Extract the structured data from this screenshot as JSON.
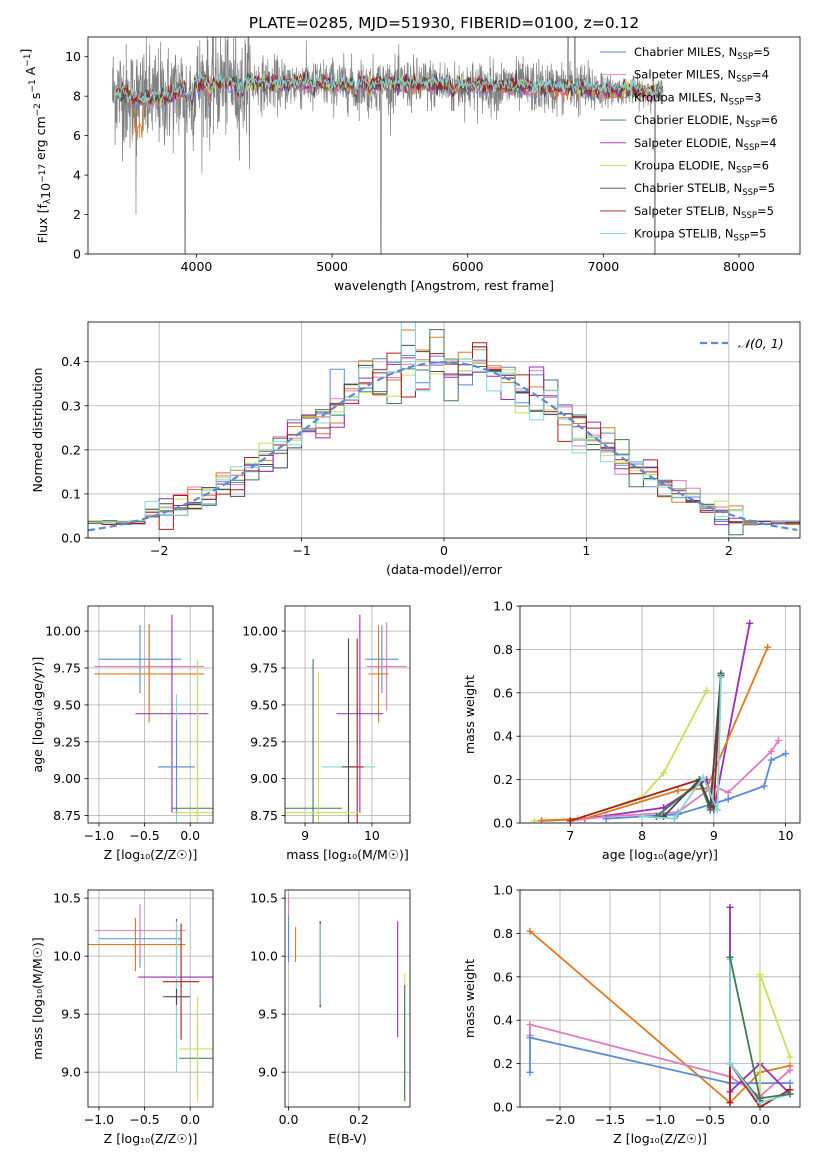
{
  "figure": {
    "title": "PLATE=0285, MJD=51930, FIBERID=0100, z=0.12"
  },
  "colors": {
    "chabrier_miles": "#5b8bd8",
    "salpeter_miles": "#e07bbd",
    "kroupa_miles": "#e07a1e",
    "chabrier_elodie": "#3e7a50",
    "salpeter_elodie": "#9b2bb8",
    "kroupa_elodie": "#c8e05a",
    "chabrier_stelib": "#4a4a4a",
    "salpeter_stelib": "#b01c1c",
    "kroupa_stelib": "#7fd8d8",
    "data": "#808080",
    "normal": "#5b8bd8",
    "grid": "#b0b0b0"
  },
  "legend1": [
    {
      "key": "chabrier_miles",
      "base": "Chabrier MILES, N",
      "sub": "SSP",
      "tail": "=5"
    },
    {
      "key": "salpeter_miles",
      "base": "Salpeter MILES, N",
      "sub": "SSP",
      "tail": "=4"
    },
    {
      "key": "kroupa_miles",
      "base": "Kroupa MILES, N",
      "sub": "SSP",
      "tail": "=3"
    },
    {
      "key": "chabrier_elodie",
      "base": "Chabrier ELODIE, N",
      "sub": "SSP",
      "tail": "=6"
    },
    {
      "key": "salpeter_elodie",
      "base": "Salpeter ELODIE, N",
      "sub": "SSP",
      "tail": "=4"
    },
    {
      "key": "kroupa_elodie",
      "base": "Kroupa ELODIE, N",
      "sub": "SSP",
      "tail": "=6"
    },
    {
      "key": "chabrier_stelib",
      "base": "Chabrier STELIB, N",
      "sub": "SSP",
      "tail": "=5"
    },
    {
      "key": "salpeter_stelib",
      "base": "Salpeter STELIB, N",
      "sub": "SSP",
      "tail": "=5"
    },
    {
      "key": "kroupa_stelib",
      "base": "Kroupa STELIB, N",
      "sub": "SSP",
      "tail": "=5"
    }
  ],
  "chart_data": [
    {
      "id": "spectrum",
      "type": "line",
      "title": "PLATE=0285, MJD=51930, FIBERID=0100, z=0.12",
      "xlabel": "wavelength [Angstrom, rest frame]",
      "ylabel_parts": {
        "a": "Flux [f",
        "b": "λ",
        "c": "10",
        "d": "−17",
        "e": " erg cm",
        "f": "−2",
        "g": " s",
        "h": "−1",
        "i": " A",
        "j": "−1",
        "k": "]"
      },
      "xlim": [
        3200,
        8450
      ],
      "ylim": [
        0,
        11
      ],
      "xticks": [
        4000,
        5000,
        6000,
        7000,
        8000
      ],
      "yticks": [
        0,
        2,
        4,
        6,
        8,
        10
      ],
      "continuum_x": [
        3400,
        3600,
        3800,
        4000,
        4200,
        4400,
        4600,
        4800,
        5000,
        5200,
        5400,
        5600,
        5800,
        6000,
        6200,
        6400,
        6600,
        6800,
        7000,
        7200,
        7400
      ],
      "continuum_y": [
        8.2,
        7.8,
        8.0,
        8.6,
        8.7,
        8.7,
        8.6,
        8.7,
        8.6,
        8.6,
        8.6,
        8.6,
        8.6,
        8.5,
        8.5,
        8.5,
        8.4,
        8.4,
        8.3,
        8.3,
        8.2
      ],
      "data_range": [
        3380,
        7440
      ]
    },
    {
      "id": "residuals",
      "type": "histogram",
      "xlabel": "(data-model)/error",
      "ylabel": "Normed distribution",
      "xlim": [
        -2.5,
        2.5
      ],
      "ylim": [
        0,
        0.49
      ],
      "xticks": [
        -2,
        -1,
        0,
        1,
        2
      ],
      "yticks": [
        0,
        0.1,
        0.2,
        0.3,
        0.4
      ],
      "legend": "𝒩(0, 1)",
      "bin_width": 0.1
    },
    {
      "id": "age_vs_Z",
      "type": "errorbar",
      "xlabel": "Z [log₁₀(Z/Z☉)]",
      "ylabel": "age  [log₁₀(age/yr)]",
      "xlim": [
        -1.12,
        0.25
      ],
      "ylim": [
        8.7,
        10.17
      ],
      "xticks": [
        -1.0,
        -0.5,
        0.0
      ],
      "yticks": [
        8.75,
        9.0,
        9.25,
        9.5,
        9.75,
        10.0
      ],
      "points": [
        {
          "key": "chabrier_miles",
          "x": -0.55,
          "xerr": 0.45,
          "y": 9.81,
          "yerr": 0.23
        },
        {
          "key": "salpeter_miles",
          "x": -0.45,
          "xerr": 0.6,
          "y": 9.76,
          "yerr": 0.29
        },
        {
          "key": "kroupa_miles",
          "x": -0.45,
          "xerr": 0.6,
          "y": 9.71,
          "yerr": 0.33
        },
        {
          "key": "salpeter_elodie",
          "x": -0.2,
          "xerr": 0.4,
          "y": 9.44,
          "yerr": 0.67
        },
        {
          "key": "kroupa_stelib",
          "x": -0.15,
          "xerr": 0.2,
          "y": 9.08,
          "yerr": 0.49
        },
        {
          "key": "chabrier_miles",
          "x": -0.15,
          "xerr": 0.2,
          "y": 9.08,
          "yerr": 0.32
        },
        {
          "key": "chabrier_elodie",
          "x": 0.08,
          "xerr": 0.28,
          "y": 8.8,
          "yerr": 1.0
        },
        {
          "key": "kroupa_elodie",
          "x": 0.08,
          "xerr": 0.28,
          "y": 8.77,
          "yerr": 1.04
        }
      ]
    },
    {
      "id": "age_vs_mass",
      "type": "errorbar",
      "xlabel": "mass [log₁₀(M/M☉)]",
      "ylabel": "",
      "xlim": [
        8.7,
        10.57
      ],
      "ylim": [
        8.7,
        10.17
      ],
      "xticks": [
        9,
        10
      ],
      "yticks": [
        8.75,
        9.0,
        9.25,
        9.5,
        9.75,
        10.0
      ],
      "points": [
        {
          "key": "chabrier_miles",
          "x": 10.15,
          "xerr": 0.25,
          "y": 9.81,
          "yerr": 0.23
        },
        {
          "key": "salpeter_miles",
          "x": 10.22,
          "xerr": 0.3,
          "y": 9.76,
          "yerr": 0.3
        },
        {
          "key": "kroupa_miles",
          "x": 10.1,
          "xerr": 0.15,
          "y": 9.71,
          "yerr": 0.33
        },
        {
          "key": "salpeter_elodie",
          "x": 9.82,
          "xerr": 0.35,
          "y": 9.44,
          "yerr": 0.67
        },
        {
          "key": "kroupa_stelib",
          "x": 9.65,
          "xerr": 0.4,
          "y": 9.08,
          "yerr": 0.87
        },
        {
          "key": "chabrier_stelib",
          "x": 9.65,
          "xerr": 0.1,
          "y": 9.08,
          "yerr": 0.87
        },
        {
          "key": "salpeter_stelib",
          "x": 9.78,
          "xerr": 0.1,
          "y": 9.08,
          "yerr": 0.87
        },
        {
          "key": "chabrier_elodie",
          "x": 9.12,
          "xerr": 0.43,
          "y": 8.8,
          "yerr": 1.01
        },
        {
          "key": "kroupa_elodie",
          "x": 9.2,
          "xerr": 0.65,
          "y": 8.77,
          "yerr": 0.95
        }
      ]
    },
    {
      "id": "massweight_vs_age",
      "type": "line",
      "xlabel": "age  [log₁₀(age/yr)]",
      "ylabel": "mass weight",
      "xlim": [
        6.3,
        10.2
      ],
      "ylim": [
        0,
        1
      ],
      "xticks": [
        7,
        8,
        9,
        10
      ],
      "yticks": [
        0,
        0.2,
        0.4,
        0.6,
        0.8,
        1.0
      ],
      "series": [
        {
          "key": "kroupa_elodie",
          "x": [
            6.5,
            7.1,
            8.0,
            8.3,
            8.9
          ],
          "y": [
            0.01,
            0.02,
            0.12,
            0.23,
            0.61
          ]
        },
        {
          "key": "salpeter_elodie",
          "x": [
            6.6,
            7.2,
            8.3,
            8.9,
            9.0,
            9.5
          ],
          "y": [
            0.01,
            0.02,
            0.07,
            0.2,
            0.06,
            0.92
          ]
        },
        {
          "key": "kroupa_miles",
          "x": [
            6.6,
            7.2,
            8.5,
            8.9,
            9.75
          ],
          "y": [
            0.01,
            0.02,
            0.15,
            0.16,
            0.81
          ]
        },
        {
          "key": "salpeter_miles",
          "x": [
            7.0,
            7.5,
            8.5,
            9.0,
            9.2,
            9.8,
            9.9
          ],
          "y": [
            0.01,
            0.03,
            0.05,
            0.17,
            0.14,
            0.33,
            0.38
          ]
        },
        {
          "key": "chabrier_miles",
          "x": [
            7.5,
            8.5,
            9.2,
            9.7,
            9.8,
            10.0
          ],
          "y": [
            0.02,
            0.04,
            0.11,
            0.17,
            0.29,
            0.32
          ]
        },
        {
          "key": "salpeter_stelib",
          "x": [
            7.0,
            8.8,
            8.95,
            9.0,
            9.1
          ],
          "y": [
            0.01,
            0.2,
            0.07,
            0.08,
            0.68
          ]
        },
        {
          "key": "chabrier_elodie",
          "x": [
            8.2,
            8.8,
            8.95,
            9.1
          ],
          "y": [
            0.03,
            0.19,
            0.06,
            0.69
          ]
        },
        {
          "key": "chabrier_stelib",
          "x": [
            8.3,
            8.8,
            8.95,
            9.1
          ],
          "y": [
            0.03,
            0.2,
            0.08,
            0.68
          ]
        },
        {
          "key": "kroupa_stelib",
          "x": [
            8.0,
            8.45,
            8.85,
            9.05,
            9.1
          ],
          "y": [
            0.03,
            0.02,
            0.21,
            0.06,
            0.67
          ]
        }
      ]
    },
    {
      "id": "mass_vs_Z",
      "type": "errorbar",
      "xlabel": "Z [log₁₀(Z/Z☉)]",
      "ylabel": "mass [log₁₀(M/M☉)]",
      "xlim": [
        -1.12,
        0.25
      ],
      "ylim": [
        8.7,
        10.57
      ],
      "xticks": [
        -1.0,
        -0.5,
        0.0
      ],
      "yticks": [
        9.0,
        9.5,
        10.0,
        10.5
      ],
      "points": [
        {
          "key": "chabrier_miles",
          "x": -0.55,
          "xerr": 0.45,
          "y": 10.15,
          "yerr": 0.25
        },
        {
          "key": "salpeter_miles",
          "x": -0.55,
          "xerr": 0.5,
          "y": 10.22,
          "yerr": 0.23
        },
        {
          "key": "kroupa_miles",
          "x": -0.6,
          "xerr": 0.55,
          "y": 10.1,
          "yerr": 0.23
        },
        {
          "key": "salpeter_elodie",
          "x": -0.15,
          "xerr": 0.42,
          "y": 9.82,
          "yerr": 0.5
        },
        {
          "key": "kroupa_stelib",
          "x": -0.15,
          "xerr": 0.12,
          "y": 9.65,
          "yerr": 0.65
        },
        {
          "key": "salpeter_stelib",
          "x": -0.1,
          "xerr": 0.2,
          "y": 9.78,
          "yerr": 0.5
        },
        {
          "key": "chabrier_elodie",
          "x": 0.08,
          "xerr": 0.2,
          "y": 9.12,
          "yerr": 0.3
        },
        {
          "key": "kroupa_elodie",
          "x": 0.08,
          "xerr": 0.2,
          "y": 9.2,
          "yerr": 0.45
        },
        {
          "key": "chabrier_stelib",
          "x": -0.15,
          "xerr": 0.15,
          "y": 9.65,
          "yerr": 0.07
        }
      ]
    },
    {
      "id": "mass_vs_EBV",
      "type": "errorbar",
      "xlabel": "E(B-V)",
      "ylabel": "",
      "xlim": [
        -0.01,
        0.345
      ],
      "ylim": [
        8.7,
        10.57
      ],
      "xticks": [
        0.0,
        0.2
      ],
      "yticks": [
        9.0,
        9.5,
        10.0,
        10.5
      ],
      "points": [
        {
          "key": "salpeter_miles",
          "x": 0.0,
          "xerr": 0.0,
          "y": 10.25,
          "yerr": 0.28
        },
        {
          "key": "chabrier_miles",
          "x": 0.0,
          "xerr": 0.0,
          "y": 10.15,
          "yerr": 0.2
        },
        {
          "key": "kroupa_miles",
          "x": 0.02,
          "xerr": 0.0,
          "y": 10.1,
          "yerr": 0.15
        },
        {
          "key": "chabrier_stelib",
          "x": 0.09,
          "xerr": 0.0,
          "y": 9.93,
          "yerr": 0.37
        },
        {
          "key": "salpeter_stelib",
          "x": 0.09,
          "xerr": 0.0,
          "y": 9.93,
          "yerr": 0.37
        },
        {
          "key": "kroupa_stelib",
          "x": 0.09,
          "xerr": 0.0,
          "y": 9.93,
          "yerr": 0.35
        },
        {
          "key": "salpeter_elodie",
          "x": 0.31,
          "xerr": 0.0,
          "y": 9.8,
          "yerr": 0.5
        },
        {
          "key": "kroupa_elodie",
          "x": 0.33,
          "xerr": 0.0,
          "y": 9.3,
          "yerr": 0.55
        },
        {
          "key": "chabrier_elodie",
          "x": 0.33,
          "xerr": 0.0,
          "y": 9.25,
          "yerr": 0.5
        }
      ]
    },
    {
      "id": "massweight_vs_Z",
      "type": "line",
      "xlabel": "Z [log₁₀(Z/Z☉)]",
      "ylabel": "mass weight",
      "xlim": [
        -2.4,
        0.4
      ],
      "ylim": [
        0,
        1
      ],
      "xticks": [
        -2.0,
        -1.5,
        -1.0,
        -0.5,
        0.0
      ],
      "yticks": [
        0,
        0.2,
        0.4,
        0.6,
        0.8,
        1.0
      ],
      "series": [
        {
          "key": "kroupa_miles",
          "x": [
            -2.3,
            -0.3,
            0.0,
            0.3
          ],
          "y": [
            0.81,
            0.02,
            0.16,
            0.19
          ]
        },
        {
          "key": "salpeter_miles",
          "x": [
            -2.3,
            -2.3,
            -0.3,
            0.0,
            0.3
          ],
          "y": [
            0.33,
            0.38,
            0.14,
            0.05,
            0.17
          ]
        },
        {
          "key": "chabrier_miles",
          "x": [
            -2.3,
            -2.3,
            -0.3,
            0.0,
            0.3
          ],
          "y": [
            0.16,
            0.32,
            0.11,
            0.11,
            0.11
          ]
        },
        {
          "key": "salpeter_elodie",
          "x": [
            -0.3,
            -0.3,
            0.0,
            0.3
          ],
          "y": [
            0.92,
            0.07,
            0.2,
            0.06
          ]
        },
        {
          "key": "kroupa_elodie",
          "x": [
            0.0,
            0.0,
            0.3
          ],
          "y": [
            0.01,
            0.61,
            0.23
          ]
        },
        {
          "key": "salpeter_stelib",
          "x": [
            -0.3,
            -0.3,
            0.0,
            0.3
          ],
          "y": [
            0.02,
            0.2,
            0.0,
            0.08
          ]
        },
        {
          "key": "chabrier_stelib",
          "x": [
            -0.3,
            -0.3,
            0.0
          ],
          "y": [
            0.69,
            0.2,
            0.03
          ]
        },
        {
          "key": "kroupa_stelib",
          "x": [
            -0.3,
            -0.3,
            0.0,
            0.3
          ],
          "y": [
            0.68,
            0.2,
            0.02,
            0.06
          ]
        },
        {
          "key": "chabrier_elodie",
          "x": [
            -0.3,
            0.0,
            0.3
          ],
          "y": [
            0.69,
            0.04,
            0.06
          ]
        }
      ]
    }
  ]
}
